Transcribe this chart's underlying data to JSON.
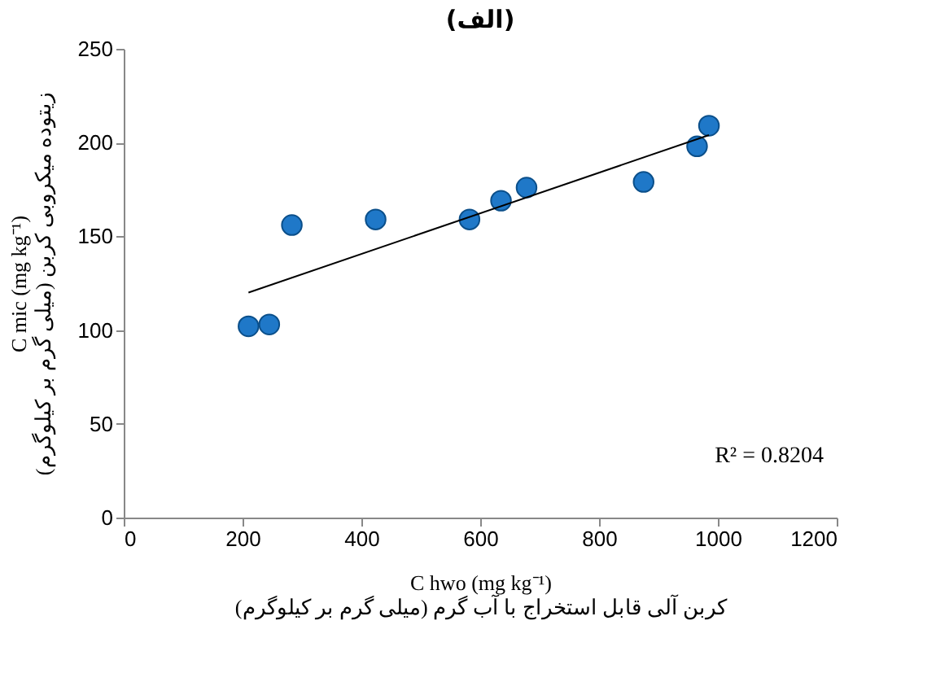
{
  "chart_data": {
    "type": "scatter",
    "title": "(الف)",
    "xlabel": "C hwo (mg kg⁻¹)\nکربن آلی قابل استخراج با آب گرم (میلی گرم بر کیلوگرم)",
    "ylabel": "C mic (mg kg⁻¹)\nزیتوده میکروبی کربن (میلی گرم بر کیلوگرم)",
    "series": [
      {
        "type": "scatter",
        "marker": "circle",
        "color": "#1f78c8",
        "x": [
          210,
          245,
          283,
          424,
          582,
          635,
          678,
          875,
          965,
          985
        ],
        "values": [
          102,
          103,
          156,
          159,
          159,
          169,
          176,
          179,
          198,
          209
        ]
      },
      {
        "type": "line",
        "marker": "none",
        "color": "#000000",
        "x": [
          210,
          985
        ],
        "values": [
          120,
          204
        ]
      }
    ],
    "annotations": [
      "R² = 0.8204"
    ],
    "xlim": [
      0,
      1200
    ],
    "xticks": [
      0,
      200,
      400,
      600,
      800,
      1000,
      1200
    ],
    "ylim": [
      0,
      250
    ],
    "yticks": [
      0,
      50,
      100,
      150,
      200,
      250
    ],
    "grid": false
  }
}
